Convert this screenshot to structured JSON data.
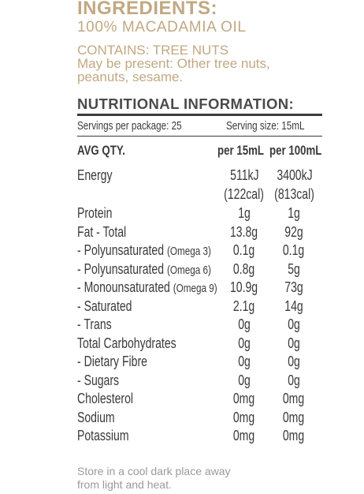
{
  "ingredients": {
    "heading": "INGREDIENTS:",
    "item": "100% MACADAMIA OIL"
  },
  "allergens": {
    "contains": "CONTAINS: TREE NUTS",
    "may_contain_line1": "May be present: Other tree nuts,",
    "may_contain_line2": "peanuts, sesame."
  },
  "nutrition": {
    "title": "NUTRITIONAL INFORMATION:",
    "servings_per_package": "Servings per package: 25",
    "serving_size": "Serving size: 15mL",
    "header": {
      "label": "AVG QTY.",
      "col1": "per 15mL",
      "col2": "per 100mL"
    },
    "energy": {
      "label": "Energy",
      "col1": "511kJ",
      "col1_sub": "(122cal)",
      "col2": "3400kJ",
      "col2_sub": "(813cal)"
    },
    "rows": [
      {
        "label": "Protein",
        "note": "",
        "col1": "1g",
        "col2": "1g"
      },
      {
        "label": "Fat - Total",
        "note": "",
        "col1": "13.8g",
        "col2": "92g"
      },
      {
        "label": "- Polyunsaturated ",
        "note": "(Omega 3)",
        "col1": "0.1g",
        "col2": "0.1g"
      },
      {
        "label": "- Polyunsaturated ",
        "note": "(Omega 6)",
        "col1": "0.8g",
        "col2": "5g"
      },
      {
        "label": "- Monounsaturated ",
        "note": "(Omega 9)",
        "col1": "10.9g",
        "col2": "73g"
      },
      {
        "label": "- Saturated",
        "note": "",
        "col1": "2.1g",
        "col2": "14g"
      },
      {
        "label": "- Trans",
        "note": "",
        "col1": "0g",
        "col2": "0g"
      },
      {
        "label": "Total Carbohydrates",
        "note": "",
        "col1": "0g",
        "col2": "0g"
      },
      {
        "label": "- Dietary Fibre",
        "note": "",
        "col1": "0g",
        "col2": "0g"
      },
      {
        "label": "- Sugars",
        "note": "",
        "col1": "0g",
        "col2": "0g"
      },
      {
        "label": "Cholesterol",
        "note": "",
        "col1": "0mg",
        "col2": "0mg"
      },
      {
        "label": "Sodium",
        "note": "",
        "col1": "0mg",
        "col2": "0mg"
      },
      {
        "label": "Potassium",
        "note": "",
        "col1": "0mg",
        "col2": "0mg"
      }
    ]
  },
  "storage": {
    "line1": "Store in a cool dark place away",
    "line2": "from light and heat."
  },
  "colors": {
    "accent_gold": "#c2a882",
    "text_dark": "#3a3a3a",
    "text_muted": "#9a9a9a"
  }
}
